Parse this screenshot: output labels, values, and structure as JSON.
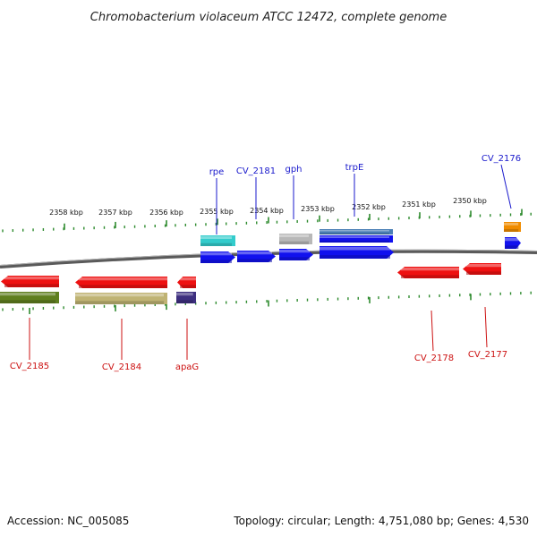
{
  "title": "Chromobacterium violaceum ATCC 12472, complete genome",
  "footer": {
    "accession": "Accession: NC_005085",
    "summary": "Topology: circular; Length: 4,751,080 bp; Genes: 4,530"
  },
  "colors": {
    "tick": "#2e8b2e",
    "backbone": "#7a7a7a",
    "upper_label": "#1a1acc",
    "lower_label": "#cc1111"
  },
  "scale_labels": [
    "2358 kbp",
    "2357 kbp",
    "2356 kbp",
    "2355 kbp",
    "2354 kbp",
    "2353 kbp",
    "2352 kbp",
    "2351 kbp",
    "2350 kbp"
  ],
  "upper_labels": [
    "rpe",
    "CV_2181",
    "gph",
    "trpE",
    "CV_2176"
  ],
  "lower_labels": [
    "CV_2185",
    "CV_2184",
    "apaG",
    "CV_2178",
    "CV_2177"
  ],
  "features": [
    {
      "name": "rpe-rna",
      "color": "#33cccc",
      "strand": "+",
      "kind": "rna"
    },
    {
      "name": "rpe",
      "color": "#1111ee",
      "strand": "+",
      "kind": "cds"
    },
    {
      "name": "CV_2181",
      "color": "#1111ee",
      "strand": "+",
      "kind": "cds"
    },
    {
      "name": "gph-rna",
      "color": "#b8b8b8",
      "strand": "+",
      "kind": "rna"
    },
    {
      "name": "gph",
      "color": "#1111ee",
      "strand": "+",
      "kind": "cds"
    },
    {
      "name": "trpE-rna-1",
      "color": "#4a7fb5",
      "strand": "+",
      "kind": "rna"
    },
    {
      "name": "trpE-rna-2",
      "color": "#1111ee",
      "strand": "+",
      "kind": "rna"
    },
    {
      "name": "trpE",
      "color": "#1111ee",
      "strand": "+",
      "kind": "cds"
    },
    {
      "name": "CV_2176-rna",
      "color": "#f08c00",
      "strand": "+",
      "kind": "rna"
    },
    {
      "name": "CV_2176",
      "color": "#1111ee",
      "strand": "+",
      "kind": "cds"
    },
    {
      "name": "CV_2185",
      "color": "#ee1111",
      "strand": "-",
      "kind": "cds"
    },
    {
      "name": "CV_2185-rna",
      "color": "#5f7f1f",
      "strand": "-",
      "kind": "rna"
    },
    {
      "name": "CV_2184",
      "color": "#ee1111",
      "strand": "-",
      "kind": "cds"
    },
    {
      "name": "CV_2184-rna",
      "color": "#bfb373",
      "strand": "-",
      "kind": "rna"
    },
    {
      "name": "apaG",
      "color": "#ee1111",
      "strand": "-",
      "kind": "cds"
    },
    {
      "name": "apaG-rna",
      "color": "#3d2f7f",
      "strand": "-",
      "kind": "rna"
    },
    {
      "name": "CV_2178",
      "color": "#ee1111",
      "strand": "-",
      "kind": "cds"
    },
    {
      "name": "CV_2177",
      "color": "#ee1111",
      "strand": "-",
      "kind": "cds"
    }
  ]
}
